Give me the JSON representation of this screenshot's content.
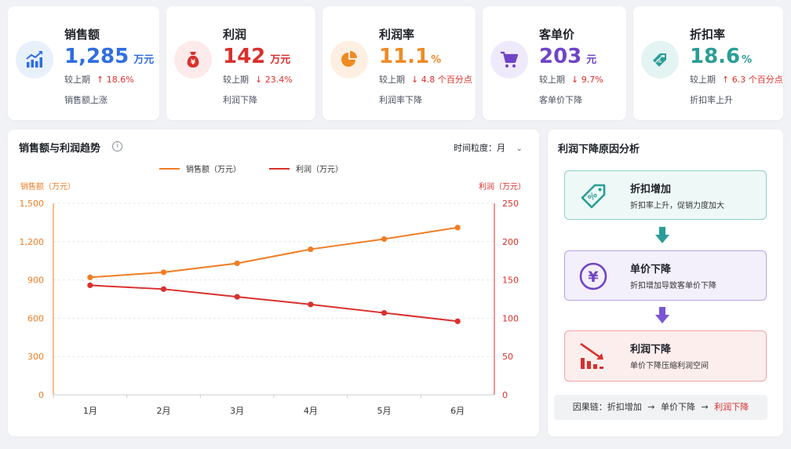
{
  "kpis": [
    {
      "title": "销售额",
      "value": "1,285",
      "unit": "万元",
      "compare_label": "较上期",
      "change": "18.6%",
      "direction": "up",
      "note": "销售额上涨",
      "color": "#2f6fdf",
      "icon_bg": "#e8f0fc",
      "icon": "trend-up-chart-icon"
    },
    {
      "title": "利润",
      "value": "142",
      "unit": "万元",
      "compare_label": "较上期",
      "change": "23.4%",
      "direction": "down",
      "note": "利润下降",
      "color": "#d9302c",
      "icon_bg": "#fdeaea",
      "icon": "money-bag-icon"
    },
    {
      "title": "利润率",
      "value": "11.1",
      "unit": "%",
      "compare_label": "较上期",
      "change": "4.8 个百分点",
      "direction": "down",
      "note": "利润率下降",
      "color": "#f08a24",
      "icon_bg": "#fdf0e3",
      "icon": "pie-chart-icon"
    },
    {
      "title": "客单价",
      "value": "203",
      "unit": "元",
      "compare_label": "较上期",
      "change": "9.7%",
      "direction": "down",
      "note": "客单价下降",
      "color": "#6f44c6",
      "icon_bg": "#efeafb",
      "icon": "shopping-cart-icon"
    },
    {
      "title": "折扣率",
      "value": "18.6",
      "unit": "%",
      "compare_label": "较上期",
      "change": "6.3 个百分点",
      "direction": "up",
      "note": "折扣率上升",
      "color": "#2a9d96",
      "icon_bg": "#e3f4f2",
      "icon": "price-tags-icon"
    }
  ],
  "trend": {
    "title": "销售额与利润趋势",
    "granularity_label": "时间粒度：",
    "granularity_value": "月"
  },
  "chart_data": {
    "type": "line",
    "categories": [
      "1月",
      "2月",
      "3月",
      "4月",
      "5月",
      "6月"
    ],
    "series": [
      {
        "name": "销售额（万元）",
        "axis": "left",
        "color": "#f07d24",
        "values": [
          920,
          960,
          1030,
          1140,
          1220,
          1310
        ]
      },
      {
        "name": "利润（万元）",
        "axis": "right",
        "color": "#d9302c",
        "values": [
          143,
          138,
          128,
          118,
          107,
          96
        ]
      }
    ],
    "ylabel_left": "销售额（万元）",
    "ylabel_right": "利润（万元）",
    "yticks_left": [
      "1,500",
      "1,200",
      "900",
      "600",
      "300",
      "0"
    ],
    "yticks_right": [
      "250",
      "200",
      "150",
      "100",
      "50",
      "0"
    ],
    "ylim_left": [
      0,
      1500
    ],
    "ylim_right": [
      0,
      250
    ],
    "legend_position": "top-center",
    "grid": true
  },
  "analysis": {
    "title": "利润下降原因分析",
    "steps": [
      {
        "title": "折扣增加",
        "desc": "折扣率上升，促销力度加大",
        "icon": "discount-tag-icon",
        "bg": "#eef8f7",
        "border": "#8fd0c8",
        "color": "#2a9d96"
      },
      {
        "title": "单价下降",
        "desc": "折扣增加导致客单价下降",
        "icon": "yen-circle-icon",
        "bg": "#f3effb",
        "border": "#b9a3e6",
        "color": "#6f44c6"
      },
      {
        "title": "利润下降",
        "desc": "单价下降压缩利润空间",
        "icon": "bar-decline-icon",
        "bg": "#fdeeee",
        "border": "#f0a3a3",
        "color": "#d9302c"
      }
    ],
    "chain_label": "因果链：",
    "chain_steps": [
      "折扣增加",
      "单价下降",
      "利润下降"
    ],
    "chain_arrow": "→"
  }
}
